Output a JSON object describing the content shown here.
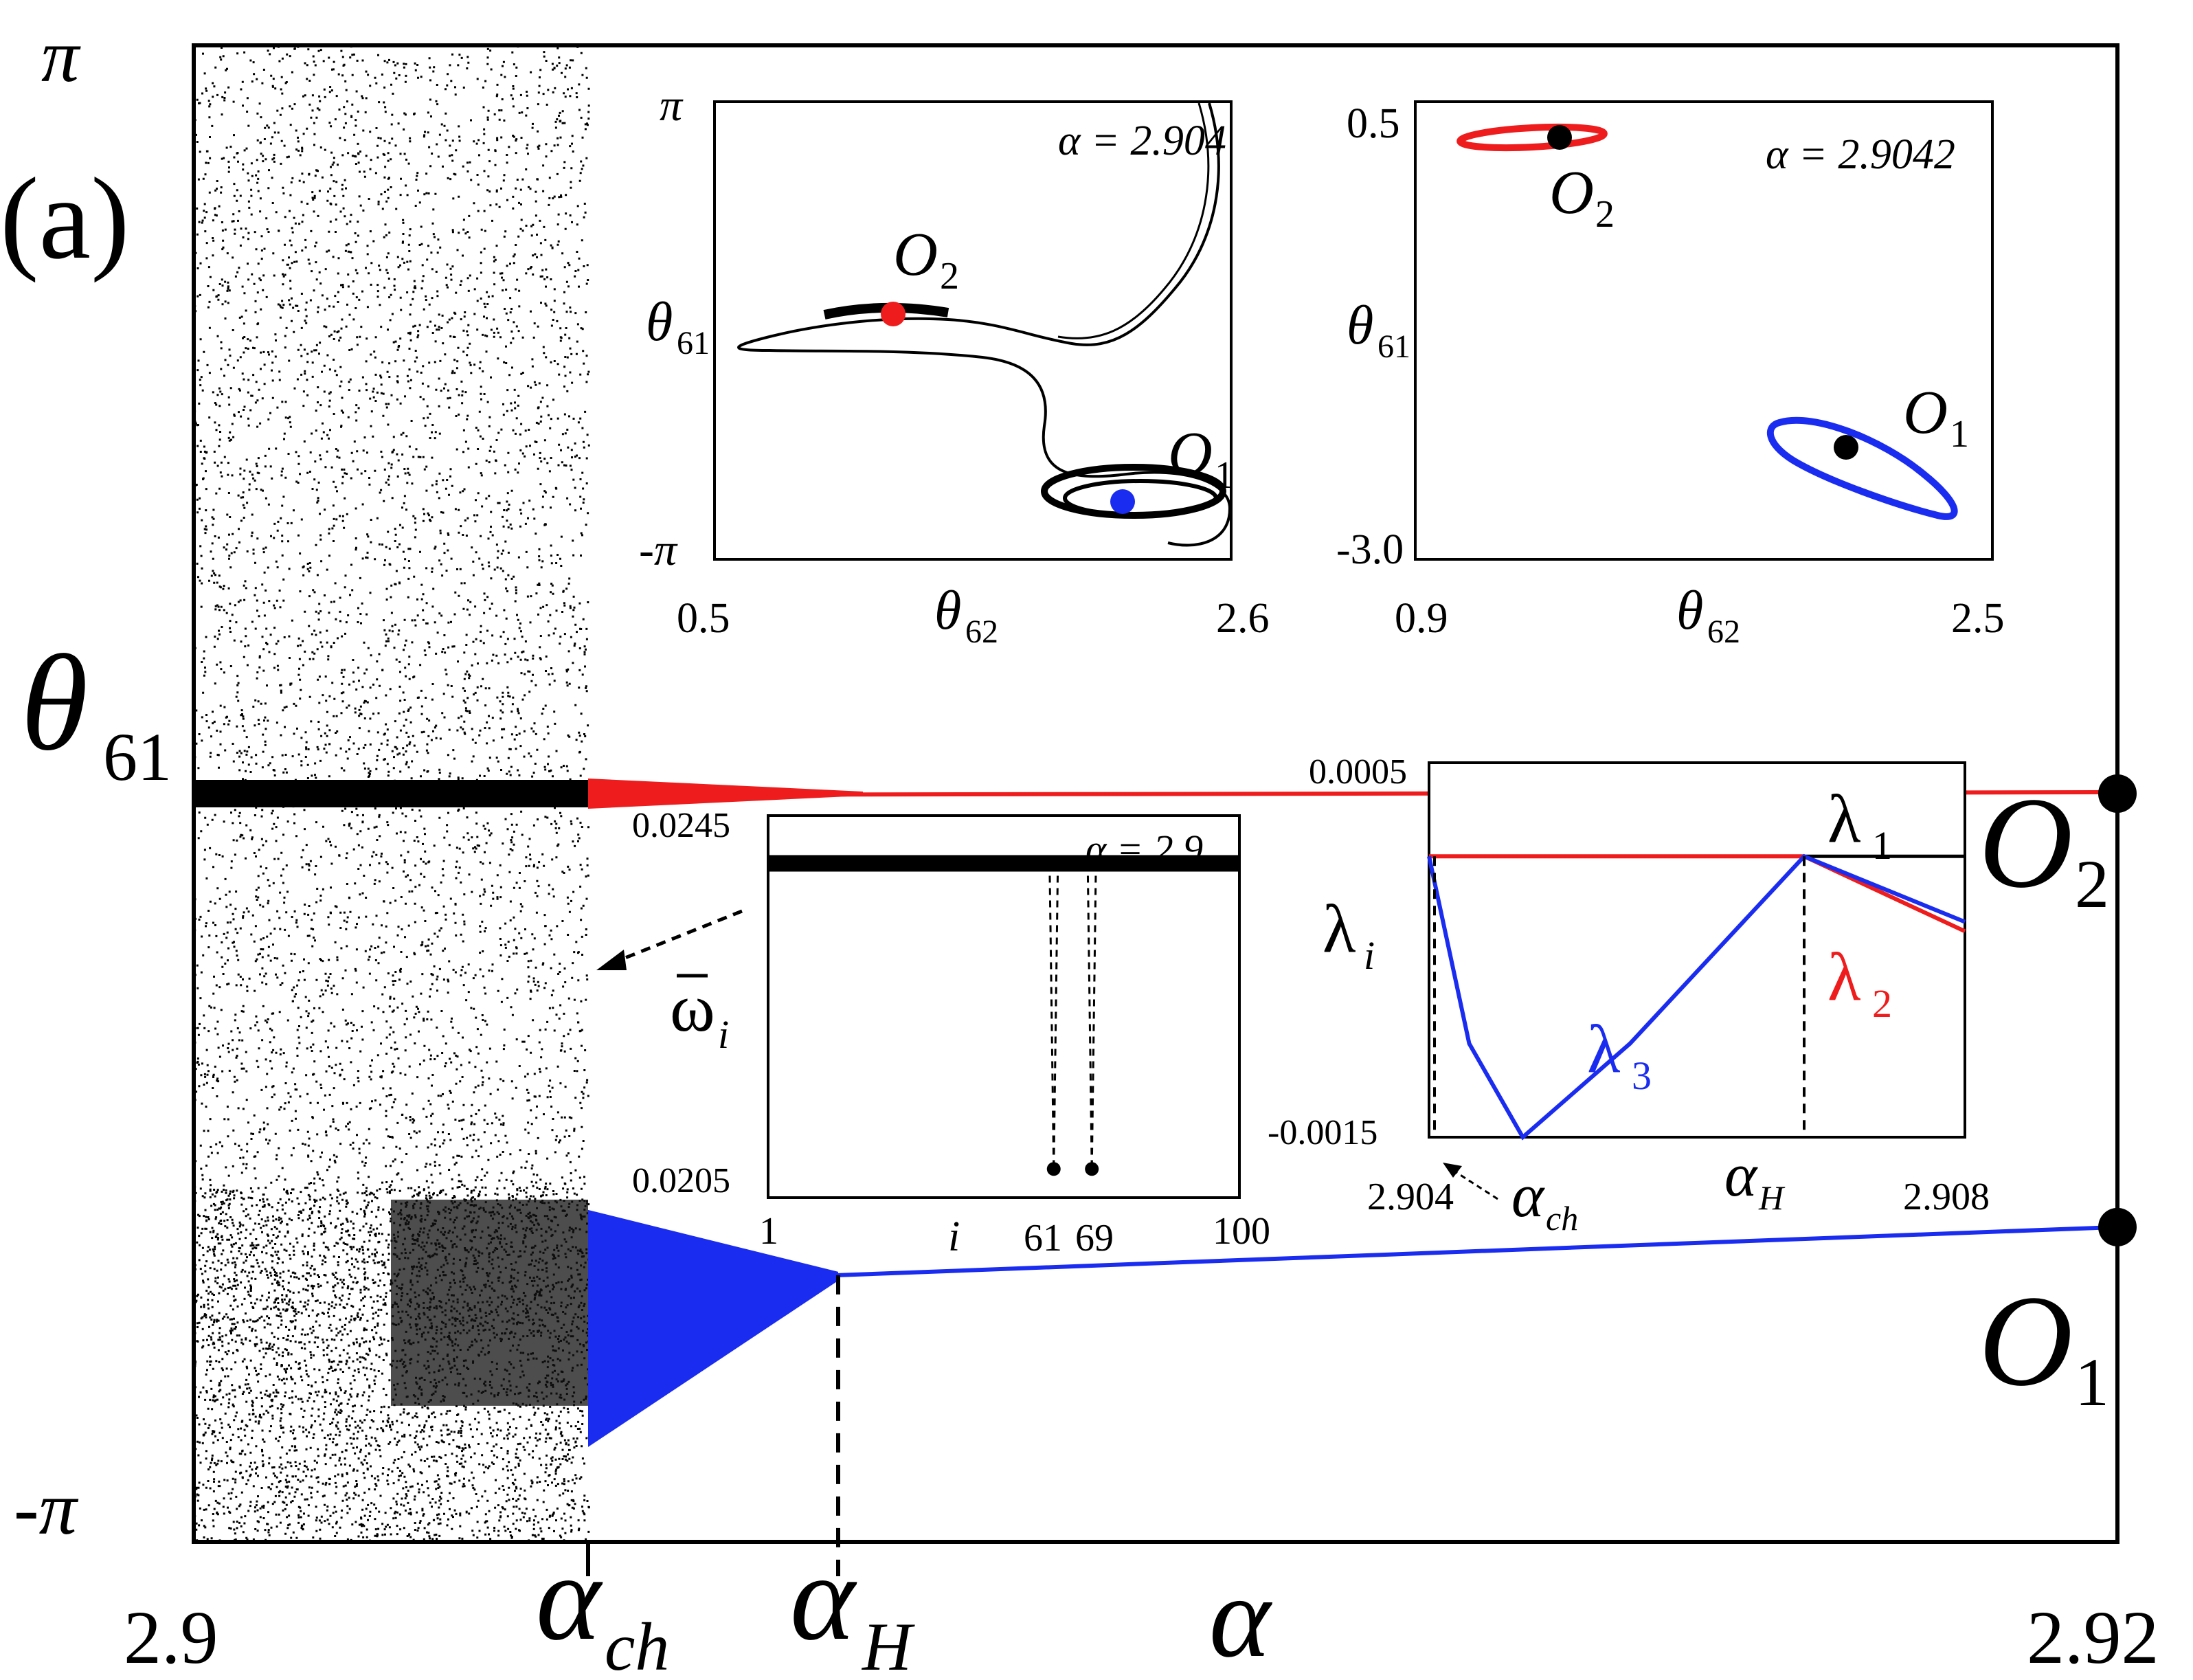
{
  "panel_label": "(a)",
  "colors": {
    "red": "#ee1c1c",
    "blue": "#1a2cf0",
    "black": "#000000"
  },
  "chart_data": [
    {
      "name": "main-bifurcation",
      "type": "scatter",
      "xlabel": "α",
      "ylabel": "θ",
      "ylabel_sub": "61",
      "xlim": [
        2.9,
        2.92
      ],
      "xticks": [
        "2.9",
        "2.92"
      ],
      "yticks": {
        "top": "π",
        "bottom": "-π"
      },
      "markers": [
        {
          "label": "α",
          "sub": "ch",
          "x": 2.9041
        },
        {
          "label": "α",
          "sub": "H",
          "x": 2.9067
        }
      ],
      "orbits": [
        {
          "label": "O",
          "sub": "2",
          "color": "red",
          "theta_at_end": 0.0,
          "x_end": 2.92
        },
        {
          "label": "O",
          "sub": "1",
          "color": "blue",
          "theta_at_end": -1.82,
          "x_end": 2.92
        }
      ]
    },
    {
      "name": "inset-phase-portrait-1",
      "type": "line",
      "annotation": "α = 2.904",
      "xlabel": "θ",
      "xlabel_sub": "62",
      "ylabel": "θ",
      "ylabel_sub": "61",
      "xticks": [
        "0.5",
        "2.6"
      ],
      "yticks": [
        "π",
        "-π"
      ],
      "points": [
        {
          "label": "O",
          "sub": "2",
          "color": "red",
          "x": 1.35,
          "y": 0.45
        },
        {
          "label": "O",
          "sub": "1",
          "color": "blue",
          "x": 2.05,
          "y": -2.35
        }
      ]
    },
    {
      "name": "inset-phase-portrait-2",
      "type": "line",
      "annotation": "α = 2.9042",
      "xlabel": "θ",
      "xlabel_sub": "62",
      "ylabel": "θ",
      "ylabel_sub": "61",
      "xticks": [
        "0.9",
        "2.5"
      ],
      "yticks": [
        "0.5",
        "-3.0"
      ],
      "points": [
        {
          "label": "O",
          "sub": "2",
          "color": "black",
          "x": 1.5,
          "y": 0.42
        },
        {
          "label": "O",
          "sub": "1",
          "color": "black",
          "x": 2.15,
          "y": -2.3
        }
      ]
    },
    {
      "name": "inset-mean-frequency",
      "type": "scatter",
      "annotation": "α = 2.9",
      "xlabel": "i",
      "ylabel": "ω",
      "ylabel_sub": "i",
      "xlim": [
        1,
        100
      ],
      "ylim": [
        0.0205,
        0.0245
      ],
      "xticks": [
        "1",
        "61",
        "69",
        "100"
      ],
      "yticks": [
        "0.0245",
        "0.0205"
      ],
      "baseline": 0.024,
      "dips": [
        {
          "i": 61,
          "value": 0.0208
        },
        {
          "i": 69,
          "value": 0.0208
        }
      ]
    },
    {
      "name": "inset-lyapunov",
      "type": "line",
      "xlabel_markers": [
        {
          "label": "α",
          "sub": "ch"
        },
        {
          "label": "α",
          "sub": "H"
        }
      ],
      "ylabel": "λ",
      "ylabel_sub": "i",
      "xlim": [
        2.904,
        2.908
      ],
      "ylim": [
        -0.0015,
        0.0005
      ],
      "xticks": [
        "2.904",
        "2.908"
      ],
      "yticks": [
        "0.0005",
        "-0.0015"
      ],
      "series": [
        {
          "name": "λ",
          "sub": "1",
          "color": "black",
          "x": [
            2.904,
            2.9068,
            2.908
          ],
          "y": [
            0.0,
            0.0,
            0.0
          ]
        },
        {
          "name": "λ",
          "sub": "2",
          "color": "red",
          "x": [
            2.904,
            2.9068,
            2.908
          ],
          "y": [
            0.0,
            0.0,
            -0.0004
          ]
        },
        {
          "name": "λ",
          "sub": "3",
          "color": "blue",
          "x": [
            2.904,
            2.9043,
            2.9047,
            2.9055,
            2.9068,
            2.908
          ],
          "y": [
            0.0,
            -0.001,
            -0.0015,
            -0.001,
            0.0,
            -0.00035
          ]
        }
      ]
    }
  ]
}
